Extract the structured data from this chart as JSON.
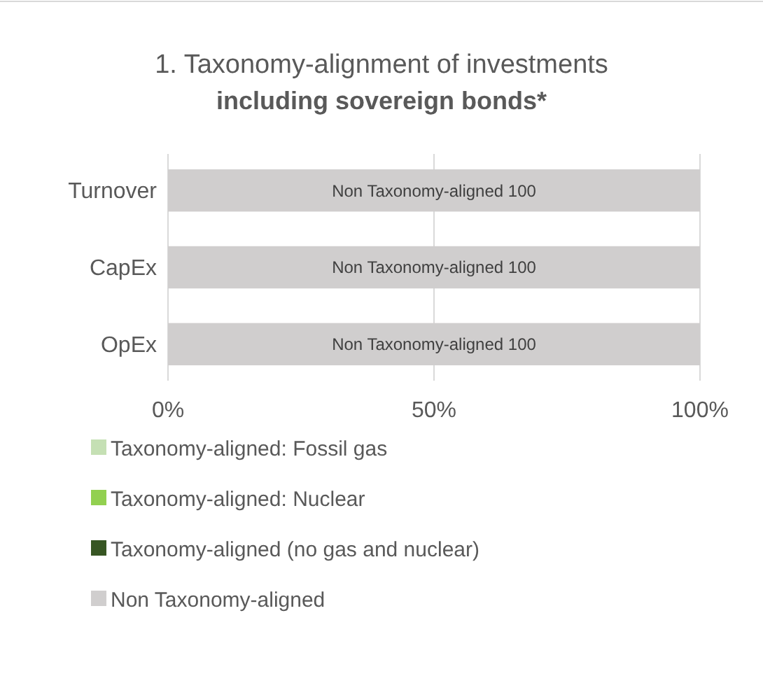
{
  "chart_data": {
    "type": "bar",
    "orientation": "horizontal",
    "stacked": true,
    "title": "1. Taxonomy-alignment of investments",
    "subtitle": "including sovereign bonds*",
    "categories": [
      "Turnover",
      "CapEx",
      "OpEx"
    ],
    "series": [
      {
        "name": "Taxonomy-aligned: Fossil gas",
        "color": "#c5e0b4",
        "values": [
          0,
          0,
          0
        ]
      },
      {
        "name": "Taxonomy-aligned: Nuclear",
        "color": "#92d050",
        "values": [
          0,
          0,
          0
        ]
      },
      {
        "name": "Taxonomy-aligned (no gas and nuclear)",
        "color": "#375623",
        "values": [
          0,
          0,
          0
        ]
      },
      {
        "name": "Non Taxonomy-aligned",
        "color": "#d0cece",
        "values": [
          100,
          100,
          100
        ],
        "value_labels": [
          "Non Taxonomy-aligned 100",
          "Non Taxonomy-aligned 100",
          "Non Taxonomy-aligned 100"
        ]
      }
    ],
    "xlim": [
      0,
      100
    ],
    "xticks": [
      {
        "value": 0,
        "label": "0%"
      },
      {
        "value": 50,
        "label": "50%"
      },
      {
        "value": 100,
        "label": "100%"
      }
    ],
    "grid": "x",
    "legend": "bottom"
  }
}
